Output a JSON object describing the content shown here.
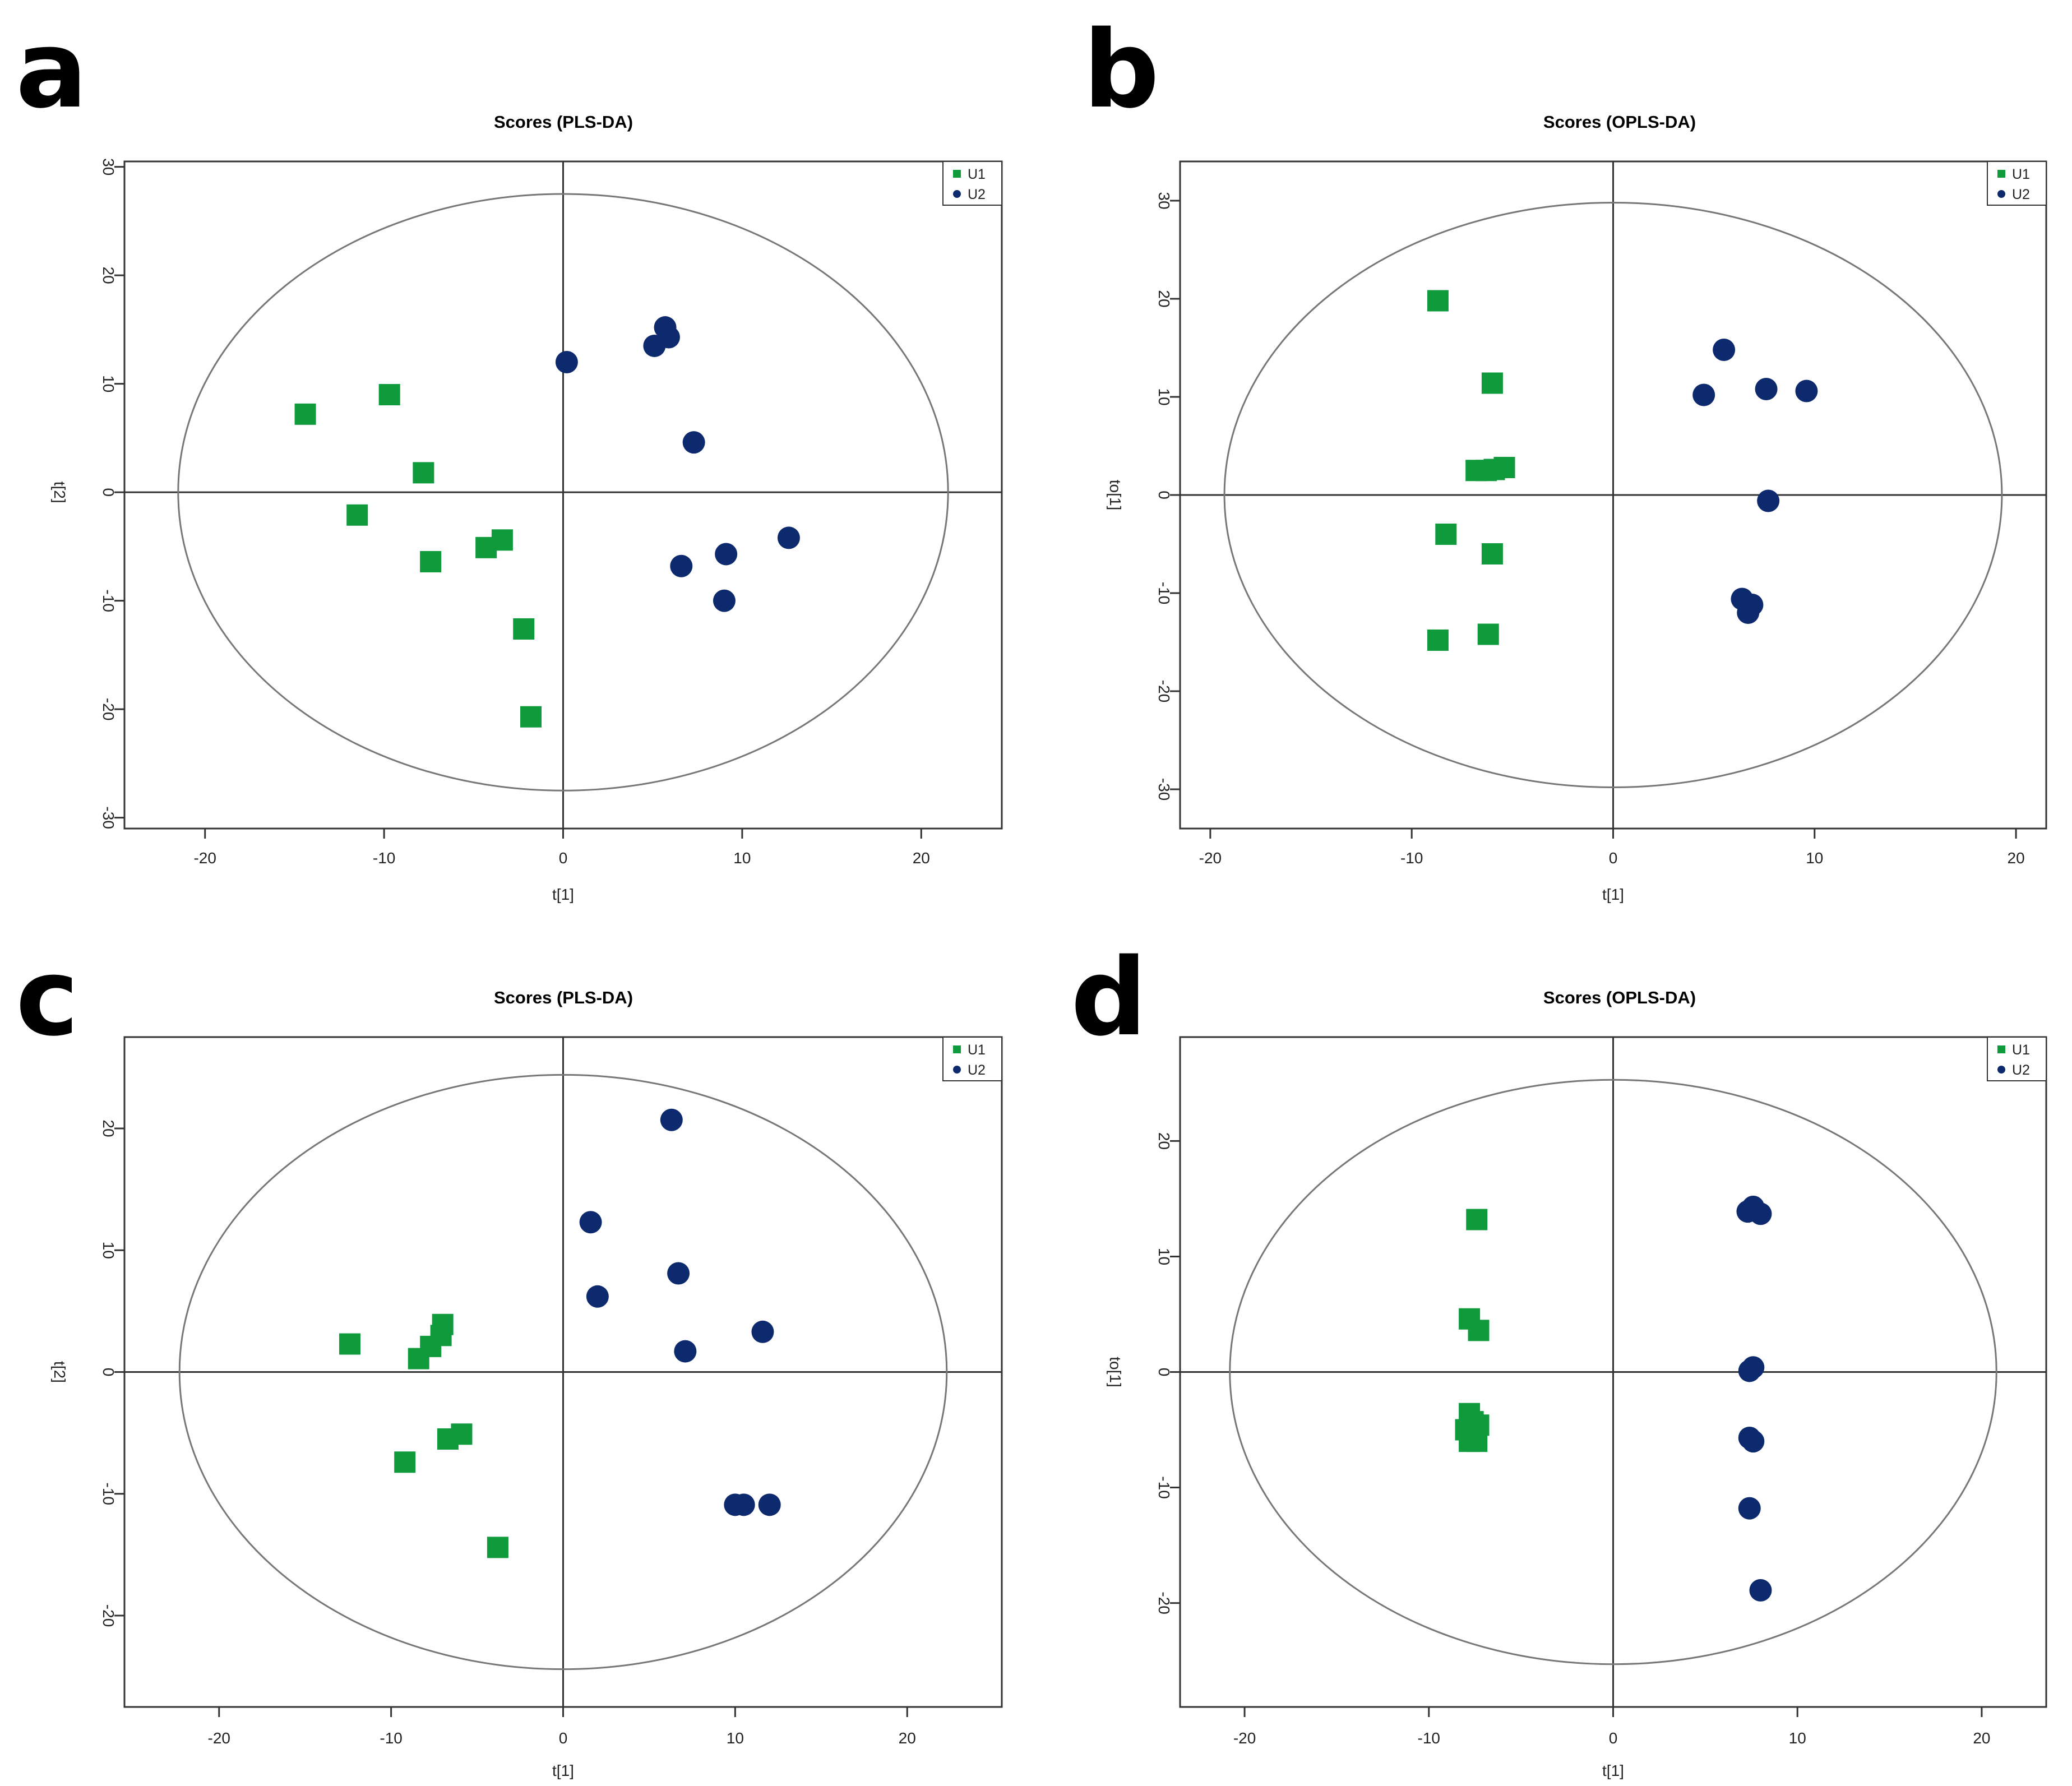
{
  "figure": {
    "colors": {
      "U1": "#0f9a3c",
      "U2": "#0e2a6e",
      "axis": "#333333",
      "ellipse": "#777777"
    }
  },
  "chart_data": [
    {
      "panel_letter": "a",
      "type": "scatter",
      "title": "Scores (PLS-DA)",
      "xlabel": "t[1]",
      "ylabel": "t[2]",
      "xlim": [
        -24.5,
        24.5
      ],
      "ylim": [
        -31,
        30.5
      ],
      "xticks": [
        -20,
        -10,
        0,
        10,
        20
      ],
      "yticks": [
        -30,
        -20,
        -10,
        0,
        10,
        20,
        30
      ],
      "ellipse": {
        "rx": 21.5,
        "ry": 27.5
      },
      "legend": {
        "position": "top-right",
        "entries": [
          "U1",
          "U2"
        ]
      },
      "series": [
        {
          "name": "U1",
          "marker": "square",
          "points": [
            [
              -14.4,
              7.2
            ],
            [
              -9.7,
              9.0
            ],
            [
              -7.8,
              1.8
            ],
            [
              -11.5,
              -2.1
            ],
            [
              -7.4,
              -6.4
            ],
            [
              -4.3,
              -5.1
            ],
            [
              -3.4,
              -4.4
            ],
            [
              -2.2,
              -12.6
            ],
            [
              -1.8,
              -20.7
            ]
          ]
        },
        {
          "name": "U2",
          "marker": "circle",
          "points": [
            [
              0.2,
              12.0
            ],
            [
              5.1,
              13.5
            ],
            [
              5.7,
              15.2
            ],
            [
              5.9,
              14.3
            ],
            [
              7.3,
              4.6
            ],
            [
              6.6,
              -6.8
            ],
            [
              9.1,
              -5.7
            ],
            [
              12.6,
              -4.2
            ],
            [
              9.0,
              -10.0
            ]
          ]
        }
      ]
    },
    {
      "panel_letter": "b",
      "type": "scatter",
      "title": "Scores (OPLS-DA)",
      "xlabel": "t[1]",
      "ylabel": "to[1]",
      "xlim": [
        -21.5,
        21.5
      ],
      "ylim": [
        -34,
        34
      ],
      "xticks": [
        -20,
        -10,
        0,
        10,
        20
      ],
      "yticks": [
        -30,
        -20,
        -10,
        0,
        10,
        20,
        30
      ],
      "ellipse": {
        "rx": 19.3,
        "ry": 29.8
      },
      "legend": {
        "position": "top-right",
        "entries": [
          "U1",
          "U2"
        ]
      },
      "series": [
        {
          "name": "U1",
          "marker": "square",
          "points": [
            [
              -8.7,
              19.8
            ],
            [
              -6.0,
              11.4
            ],
            [
              -5.4,
              2.8
            ],
            [
              -5.9,
              2.6
            ],
            [
              -6.3,
              2.5
            ],
            [
              -6.8,
              2.5
            ],
            [
              -8.3,
              -4.0
            ],
            [
              -6.0,
              -6.0
            ],
            [
              -6.2,
              -14.2
            ],
            [
              -8.7,
              -14.8
            ]
          ]
        },
        {
          "name": "U2",
          "marker": "circle",
          "points": [
            [
              5.5,
              14.8
            ],
            [
              4.5,
              10.2
            ],
            [
              7.6,
              10.8
            ],
            [
              9.6,
              10.6
            ],
            [
              7.7,
              -0.6
            ],
            [
              6.4,
              -10.6
            ],
            [
              6.9,
              -11.2
            ],
            [
              6.7,
              -12.0
            ]
          ]
        }
      ]
    },
    {
      "panel_letter": "c",
      "type": "scatter",
      "title": "Scores (PLS-DA)",
      "xlabel": "t[1]",
      "ylabel": "t[2]",
      "xlim": [
        -25.5,
        25.5
      ],
      "ylim": [
        -27.5,
        27.5
      ],
      "xticks": [
        -20,
        -10,
        0,
        10,
        20
      ],
      "yticks": [
        -20,
        -10,
        0,
        10,
        20
      ],
      "ellipse": {
        "rx": 22.3,
        "ry": 24.4
      },
      "legend": {
        "position": "top-right",
        "entries": [
          "U1",
          "U2"
        ]
      },
      "series": [
        {
          "name": "U1",
          "marker": "square",
          "points": [
            [
              -12.4,
              2.3
            ],
            [
              -8.4,
              1.1
            ],
            [
              -7.7,
              2.1
            ],
            [
              -7.1,
              3.0
            ],
            [
              -7.0,
              3.9
            ],
            [
              -6.7,
              -5.5
            ],
            [
              -5.9,
              -5.1
            ],
            [
              -9.2,
              -7.4
            ],
            [
              -3.8,
              -14.4
            ]
          ]
        },
        {
          "name": "U2",
          "marker": "circle",
          "points": [
            [
              6.3,
              20.7
            ],
            [
              1.6,
              12.3
            ],
            [
              2.0,
              6.2
            ],
            [
              6.7,
              8.1
            ],
            [
              7.1,
              1.7
            ],
            [
              11.6,
              3.3
            ],
            [
              10.0,
              -10.9
            ],
            [
              10.5,
              -10.9
            ],
            [
              12.0,
              -10.9
            ]
          ]
        }
      ]
    },
    {
      "panel_letter": "d",
      "type": "scatter",
      "title": "Scores (OPLS-DA)",
      "xlabel": "t[1]",
      "ylabel": "to[1]",
      "xlim": [
        -23.5,
        23.5
      ],
      "ylim": [
        -29,
        29
      ],
      "xticks": [
        -20,
        -10,
        0,
        10,
        20
      ],
      "yticks": [
        -20,
        -10,
        0,
        10,
        20
      ],
      "ellipse": {
        "rx": 20.8,
        "ry": 25.3
      },
      "legend": {
        "position": "top-right",
        "entries": [
          "U1",
          "U2"
        ]
      },
      "series": [
        {
          "name": "U1",
          "marker": "square",
          "points": [
            [
              -7.4,
              13.2
            ],
            [
              -7.8,
              4.6
            ],
            [
              -7.3,
              3.6
            ],
            [
              -7.8,
              -3.6
            ],
            [
              -7.6,
              -4.3
            ],
            [
              -7.3,
              -4.6
            ],
            [
              -8.0,
              -5.0
            ],
            [
              -7.6,
              -5.5
            ],
            [
              -7.8,
              -6.0
            ],
            [
              -7.4,
              -6.0
            ]
          ]
        },
        {
          "name": "U2",
          "marker": "circle",
          "points": [
            [
              7.3,
              13.9
            ],
            [
              7.6,
              14.3
            ],
            [
              8.0,
              13.7
            ],
            [
              7.4,
              0.1
            ],
            [
              7.6,
              0.4
            ],
            [
              7.4,
              -5.7
            ],
            [
              7.6,
              -6.0
            ],
            [
              7.4,
              -11.8
            ],
            [
              8.0,
              -18.9
            ]
          ]
        }
      ]
    }
  ]
}
